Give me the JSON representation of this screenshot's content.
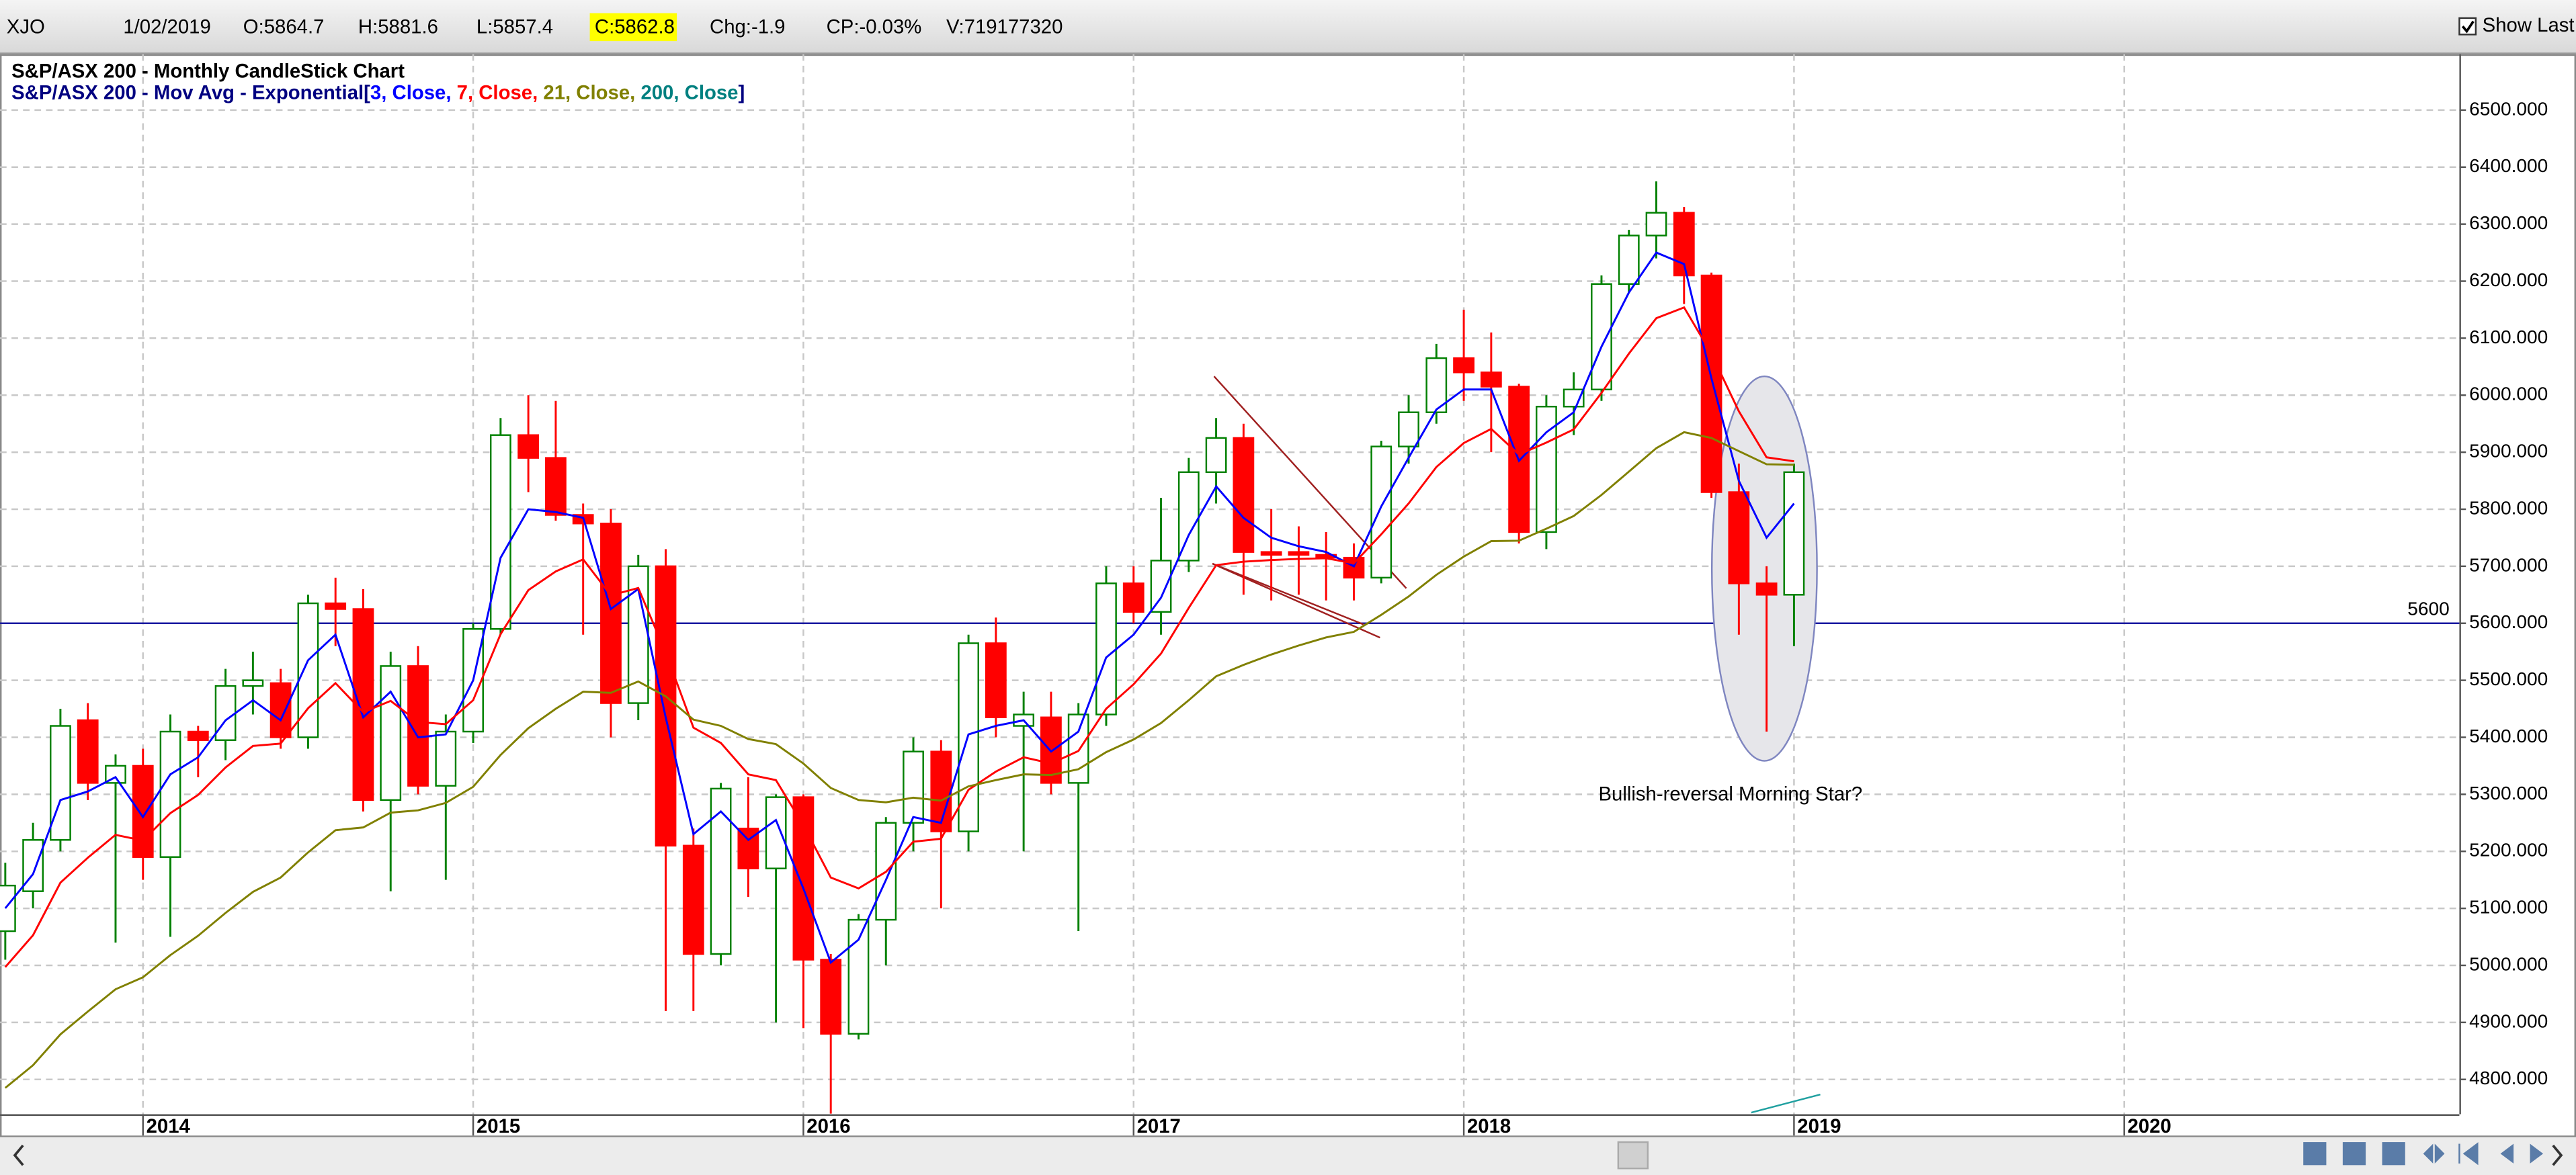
{
  "header": {
    "symbol": "XJO",
    "date": "1/02/2019",
    "open": "O:5864.7",
    "high": "H:5881.6",
    "low": "L:5857.4",
    "close": "C:5862.8",
    "change": "Chg:-1.9",
    "change_percent": "CP:-0.03%",
    "volume": "V:719177320",
    "show_last": "Show Last"
  },
  "chart_data": {
    "type": "candlestick",
    "title": "S&P/ASX 200 - Monthly CandleStick Chart",
    "subtitle": "S&P/ASX 200 - Mov Avg - Exponential",
    "legend_open": "[",
    "legend_separator": ", ",
    "legend_close": "]",
    "up_color": "#008000",
    "up_fill": "#ffffff",
    "down_color": "#ff0000",
    "xlim": [
      2013.567,
      2021.015
    ],
    "xticks": [
      2014,
      2015,
      2016,
      2017,
      2018,
      2019,
      2020
    ],
    "ylim": [
      4739,
      6598
    ],
    "yticks": [
      {
        "value": 4800,
        "label": "4800.000"
      },
      {
        "value": 4900,
        "label": "4900.000"
      },
      {
        "value": 5000,
        "label": "5000.000"
      },
      {
        "value": 5100,
        "label": "5100.000"
      },
      {
        "value": 5200,
        "label": "5200.000"
      },
      {
        "value": 5300,
        "label": "5300.000"
      },
      {
        "value": 5400,
        "label": "5400.000"
      },
      {
        "value": 5500,
        "label": "5500.000"
      },
      {
        "value": 5600,
        "label": "5600.000"
      },
      {
        "value": 5700,
        "label": "5700.000"
      },
      {
        "value": 5800,
        "label": "5800.000"
      },
      {
        "value": 5900,
        "label": "5900.000"
      },
      {
        "value": 6000,
        "label": "6000.000"
      },
      {
        "value": 6100,
        "label": "6100.000"
      },
      {
        "value": 6200,
        "label": "6200.000"
      },
      {
        "value": 6300,
        "label": "6300.000"
      },
      {
        "value": 6400,
        "label": "6400.000"
      },
      {
        "value": 6500,
        "label": "6500.000"
      }
    ],
    "grid": true,
    "hline": {
      "value": 5600,
      "label": "5600",
      "color": "#1a1aa0"
    },
    "annotation": "Bullish-reversal Morning Star?",
    "x": [
      2013.583,
      2013.667,
      2013.75,
      2013.833,
      2013.917,
      2014,
      2014.083,
      2014.167,
      2014.25,
      2014.333,
      2014.417,
      2014.5,
      2014.583,
      2014.667,
      2014.75,
      2014.833,
      2014.917,
      2015,
      2015.083,
      2015.167,
      2015.25,
      2015.333,
      2015.417,
      2015.5,
      2015.583,
      2015.667,
      2015.75,
      2015.833,
      2015.917,
      2016,
      2016.083,
      2016.167,
      2016.25,
      2016.333,
      2016.417,
      2016.5,
      2016.583,
      2016.667,
      2016.75,
      2016.833,
      2016.917,
      2017,
      2017.083,
      2017.167,
      2017.25,
      2017.333,
      2017.417,
      2017.5,
      2017.583,
      2017.667,
      2017.75,
      2017.833,
      2017.917,
      2018,
      2018.083,
      2018.167,
      2018.25,
      2018.333,
      2018.417,
      2018.5,
      2018.583,
      2018.667,
      2018.75,
      2018.833,
      2018.917,
      2019
    ],
    "open": [
      5060,
      5130,
      5220,
      5430,
      5320,
      5350,
      5190,
      5410,
      5395,
      5490,
      5495,
      5400,
      5635,
      5625,
      5290,
      5525,
      5315,
      5410,
      5590,
      5930,
      5890,
      5790,
      5775,
      5460,
      5700,
      5210,
      5020,
      5240,
      5170,
      5295,
      5010,
      4880,
      5080,
      5250,
      5375,
      5235,
      5565,
      5420,
      5435,
      5320,
      5440,
      5670,
      5620,
      5710,
      5865,
      5925,
      5725,
      5725,
      5720,
      5715,
      5680,
      5910,
      5970,
      6065,
      6040,
      6015,
      5760,
      5980,
      6010,
      6195,
      6280,
      6320,
      6210,
      5830,
      5670,
      5650
    ],
    "high": [
      5180,
      5250,
      5450,
      5460,
      5370,
      5380,
      5440,
      5420,
      5520,
      5550,
      5520,
      5650,
      5680,
      5660,
      5550,
      5560,
      5440,
      5600,
      5960,
      6000,
      5990,
      5810,
      5800,
      5720,
      5730,
      5240,
      5320,
      5330,
      5300,
      5300,
      5020,
      5090,
      5260,
      5400,
      5395,
      5580,
      5610,
      5480,
      5480,
      5460,
      5700,
      5700,
      5820,
      5890,
      5960,
      5950,
      5800,
      5770,
      5760,
      5740,
      5920,
      6000,
      6090,
      6150,
      6110,
      6020,
      6000,
      6040,
      6210,
      6290,
      6375,
      6330,
      6215,
      5880,
      5700,
      5880
    ],
    "low": [
      5010,
      5100,
      5200,
      5290,
      5040,
      5150,
      5050,
      5330,
      5360,
      5440,
      5380,
      5380,
      5560,
      5270,
      5130,
      5300,
      5150,
      5390,
      5580,
      5830,
      5780,
      5580,
      5400,
      5430,
      4920,
      4920,
      5000,
      5120,
      4900,
      4890,
      4740,
      4870,
      5000,
      5200,
      5100,
      5200,
      5400,
      5200,
      5300,
      5060,
      5420,
      5600,
      5580,
      5690,
      5810,
      5650,
      5640,
      5650,
      5640,
      5640,
      5670,
      5880,
      5950,
      5990,
      5900,
      5740,
      5730,
      5930,
      5990,
      6180,
      6240,
      6160,
      5820,
      5580,
      5410,
      5560
    ],
    "close": [
      5140,
      5220,
      5420,
      5320,
      5350,
      5190,
      5410,
      5395,
      5490,
      5500,
      5400,
      5635,
      5625,
      5290,
      5525,
      5315,
      5410,
      5590,
      5930,
      5890,
      5790,
      5775,
      5460,
      5700,
      5210,
      5020,
      5310,
      5170,
      5295,
      5010,
      4880,
      5080,
      5250,
      5375,
      5235,
      5565,
      5435,
      5440,
      5320,
      5440,
      5670,
      5620,
      5710,
      5865,
      5925,
      5725,
      5720,
      5720,
      5715,
      5680,
      5910,
      5970,
      6065,
      6040,
      6015,
      5760,
      5980,
      6010,
      6195,
      6280,
      6320,
      6210,
      5830,
      5670,
      5650,
      5865
    ],
    "series": [
      {
        "name": "3, Close",
        "color": "#0000ff",
        "values": [
          5100,
          5160,
          5290,
          5305,
          5330,
          5260,
          5335,
          5365,
          5430,
          5465,
          5430,
          5535,
          5580,
          5435,
          5480,
          5400,
          5405,
          5500,
          5715,
          5800,
          5795,
          5785,
          5625,
          5660,
          5435,
          5230,
          5270,
          5220,
          5255,
          5135,
          5005,
          5045,
          5150,
          5260,
          5250,
          5405,
          5420,
          5430,
          5375,
          5410,
          5540,
          5580,
          5645,
          5755,
          5840,
          5785,
          5750,
          5735,
          5725,
          5700,
          5805,
          5890,
          5975,
          6010,
          6010,
          5885,
          5935,
          5970,
          6085,
          6180,
          6250,
          6230,
          6030,
          5850,
          5750,
          5810
        ]
      },
      {
        "name": "7, Close",
        "color": "#ff0000",
        "values": [
          4997,
          5053,
          5145,
          5189,
          5229,
          5219,
          5267,
          5299,
          5347,
          5385,
          5389,
          5451,
          5495,
          5444,
          5464,
          5427,
          5423,
          5465,
          5581,
          5658,
          5691,
          5712,
          5649,
          5662,
          5549,
          5417,
          5390,
          5335,
          5325,
          5246,
          5154,
          5135,
          5164,
          5217,
          5222,
          5308,
          5340,
          5365,
          5354,
          5376,
          5450,
          5493,
          5547,
          5627,
          5702,
          5708,
          5711,
          5713,
          5714,
          5705,
          5756,
          5810,
          5874,
          5916,
          5941,
          5896,
          5917,
          5940,
          6004,
          6073,
          6135,
          6154,
          6073,
          5972,
          5891,
          5884
        ]
      },
      {
        "name": "21, Close",
        "color": "#808000",
        "values": [
          4785,
          4825,
          4879,
          4919,
          4958,
          4979,
          5018,
          5052,
          5092,
          5129,
          5154,
          5198,
          5237,
          5242,
          5268,
          5272,
          5285,
          5313,
          5369,
          5416,
          5450,
          5480,
          5478,
          5498,
          5472,
          5431,
          5420,
          5397,
          5388,
          5354,
          5311,
          5290,
          5286,
          5294,
          5289,
          5314,
          5325,
          5335,
          5334,
          5344,
          5374,
          5396,
          5425,
          5465,
          5507,
          5527,
          5545,
          5561,
          5575,
          5585,
          5615,
          5647,
          5685,
          5717,
          5744,
          5745,
          5766,
          5788,
          5825,
          5866,
          5907,
          5935,
          5925,
          5902,
          5879,
          5878
        ]
      },
      {
        "name": "200, Close",
        "color": "#008080"
      }
    ]
  }
}
